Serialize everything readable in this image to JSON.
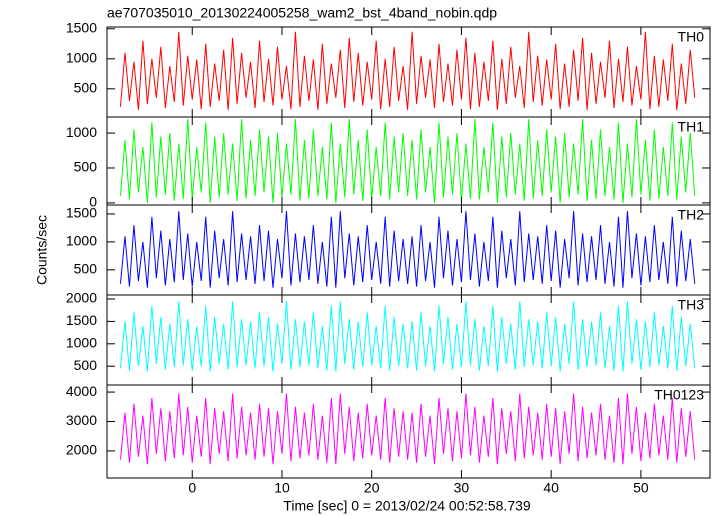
{
  "figure": {
    "title": "ae707035010_20130224005258_wam2_bst_4band_nobin.qdp",
    "ylabel": "Counts/sec"
  },
  "x_axis": {
    "label": "Time [sec] 0 = 2013/02/24 00:52:58.739",
    "xlim": [
      -9.5,
      57.7
    ],
    "xticks": [
      0,
      10,
      20,
      30,
      40,
      50
    ],
    "x": [
      -8,
      -7.5,
      -7,
      -6.5,
      -6,
      -5.5,
      -5,
      -4.5,
      -4,
      -3.5,
      -3,
      -2.5,
      -2,
      -1.5,
      -1,
      -0.5,
      0,
      0.5,
      1,
      1.5,
      2,
      2.5,
      3,
      3.5,
      4,
      4.5,
      5,
      5.5,
      6,
      6.5,
      7,
      7.5,
      8,
      8.5,
      9,
      9.5,
      10,
      10.5,
      11,
      11.5,
      12,
      12.5,
      13,
      13.5,
      14,
      14.5,
      15,
      15.5,
      16,
      16.5,
      17,
      17.5,
      18,
      18.5,
      19,
      19.5,
      20,
      20.5,
      21,
      21.5,
      22,
      22.5,
      23,
      23.5,
      24,
      24.5,
      25,
      25.5,
      26,
      26.5,
      27,
      27.5,
      28,
      28.5,
      29,
      29.5,
      30,
      30.5,
      31,
      31.5,
      32,
      32.5,
      33,
      33.5,
      34,
      34.5,
      35,
      35.5,
      36,
      36.5,
      37,
      37.5,
      38,
      38.5,
      39,
      39.5,
      40,
      40.5,
      41,
      41.5,
      42,
      42.5,
      43,
      43.5,
      44,
      44.5,
      45,
      45.5,
      46,
      46.5,
      47,
      47.5,
      48,
      48.5,
      49,
      49.5,
      50,
      50.5,
      51,
      51.5,
      52,
      52.5,
      53,
      53.5,
      54,
      54.5,
      55,
      55.5,
      56
    ]
  },
  "chart_data": [
    {
      "type": "line",
      "ylim": [
        30,
        1530
      ],
      "yticks": [
        500,
        1000,
        1500
      ],
      "series": [
        {
          "name": "TH0",
          "color": "#ff0000",
          "values": [
            200,
            1100,
            300,
            950,
            150,
            1300,
            250,
            1000,
            350,
            1200,
            180,
            880,
            280,
            1450,
            220,
            1050,
            320,
            990,
            160,
            1250,
            200,
            920,
            300,
            1150,
            150,
            1350,
            250,
            1100,
            350,
            950,
            180,
            1300,
            280,
            1000,
            220,
            1200,
            320,
            880,
            160,
            1450,
            200,
            1050,
            300,
            990,
            150,
            1250,
            250,
            920,
            350,
            1150,
            180,
            1350,
            280,
            1100,
            220,
            950,
            320,
            1300,
            160,
            1000,
            200,
            1200,
            300,
            880,
            150,
            1450,
            250,
            1050,
            350,
            990,
            180,
            1250,
            280,
            920,
            220,
            1150,
            320,
            1350,
            160,
            1100,
            200,
            950,
            300,
            1300,
            150,
            1000,
            250,
            1200,
            350,
            880,
            180,
            1450,
            280,
            1050,
            220,
            990,
            320,
            1250,
            160,
            920,
            200,
            1150,
            300,
            1350,
            150,
            1100,
            250,
            950,
            350,
            1300,
            180,
            1000,
            280,
            1200,
            220,
            880,
            320,
            1450,
            160,
            1050,
            200,
            990,
            300,
            1250,
            150,
            920,
            250,
            1150,
            350
          ]
        }
      ]
    },
    {
      "type": "line",
      "ylim": [
        -30,
        1230
      ],
      "yticks": [
        0,
        500,
        1000
      ],
      "series": [
        {
          "name": "TH1",
          "color": "#00ff00",
          "values": [
            100,
            900,
            50,
            1050,
            150,
            800,
            0,
            1150,
            80,
            950,
            120,
            1000,
            30,
            850,
            60,
            1200,
            50,
            800,
            150,
            1150,
            0,
            950,
            80,
            1000,
            120,
            850,
            30,
            1200,
            60,
            900,
            100,
            1050,
            150,
            950,
            0,
            1000,
            80,
            850,
            120,
            1200,
            30,
            900,
            60,
            1050,
            100,
            800,
            50,
            1150,
            0,
            850,
            80,
            1200,
            120,
            900,
            30,
            1050,
            60,
            800,
            100,
            1150,
            50,
            950,
            150,
            1000,
            100,
            900,
            50,
            1050,
            150,
            800,
            0,
            1150,
            80,
            950,
            120,
            1000,
            30,
            850,
            60,
            1200,
            50,
            800,
            150,
            1150,
            0,
            950,
            80,
            1000,
            120,
            850,
            30,
            1200,
            60,
            900,
            100,
            1050,
            150,
            950,
            0,
            1000,
            80,
            850,
            120,
            1200,
            30,
            900,
            60,
            1050,
            100,
            800,
            50,
            1150,
            0,
            850,
            80,
            1200,
            120,
            900,
            30,
            1050,
            60,
            800,
            100,
            1150,
            50,
            950,
            150,
            1000,
            100
          ]
        }
      ]
    },
    {
      "type": "line",
      "ylim": [
        50,
        1660
      ],
      "yticks": [
        500,
        1000,
        1500
      ],
      "series": [
        {
          "name": "TH2",
          "color": "#0000ff",
          "values": [
            250,
            1100,
            200,
            1300,
            300,
            1000,
            180,
            1450,
            350,
            1200,
            220,
            1050,
            280,
            1550,
            320,
            1150,
            200,
            1000,
            300,
            1450,
            180,
            1200,
            350,
            1050,
            220,
            1550,
            280,
            1150,
            320,
            1100,
            250,
            1300,
            300,
            1200,
            180,
            1050,
            350,
            1550,
            220,
            1150,
            280,
            1100,
            320,
            1300,
            250,
            1000,
            200,
            1450,
            180,
            1550,
            350,
            1150,
            220,
            1100,
            280,
            1300,
            320,
            1000,
            250,
            1450,
            200,
            1200,
            300,
            1050,
            250,
            1100,
            200,
            1300,
            300,
            1000,
            180,
            1450,
            350,
            1200,
            220,
            1050,
            280,
            1550,
            320,
            1150,
            200,
            1000,
            300,
            1450,
            180,
            1200,
            350,
            1050,
            220,
            1550,
            280,
            1150,
            320,
            1100,
            250,
            1300,
            300,
            1200,
            180,
            1050,
            350,
            1550,
            220,
            1150,
            280,
            1100,
            320,
            1300,
            250,
            1000,
            200,
            1450,
            180,
            1550,
            350,
            1150,
            220,
            1100,
            280,
            1300,
            320,
            1000,
            250,
            1450,
            200,
            1200,
            300,
            1050,
            250
          ]
        }
      ]
    },
    {
      "type": "line",
      "ylim": [
        80,
        2090
      ],
      "yticks": [
        500,
        1000,
        1500,
        2000
      ],
      "series": [
        {
          "name": "TH3",
          "color": "#00ffff",
          "values": [
            450,
            1500,
            400,
            1700,
            500,
            1400,
            380,
            1850,
            550,
            1600,
            420,
            1450,
            480,
            1950,
            520,
            1550,
            400,
            1400,
            500,
            1850,
            380,
            1600,
            550,
            1450,
            420,
            1950,
            480,
            1550,
            520,
            1500,
            450,
            1700,
            500,
            1600,
            380,
            1450,
            550,
            1950,
            420,
            1550,
            480,
            1500,
            520,
            1700,
            450,
            1400,
            400,
            1850,
            380,
            1950,
            550,
            1550,
            420,
            1500,
            480,
            1700,
            520,
            1400,
            450,
            1850,
            400,
            1600,
            500,
            1450,
            450,
            1500,
            400,
            1700,
            500,
            1400,
            380,
            1850,
            550,
            1600,
            420,
            1450,
            480,
            1950,
            520,
            1550,
            400,
            1400,
            500,
            1850,
            380,
            1600,
            550,
            1450,
            420,
            1950,
            480,
            1550,
            520,
            1500,
            450,
            1700,
            500,
            1600,
            380,
            1450,
            550,
            1950,
            420,
            1550,
            480,
            1500,
            520,
            1700,
            450,
            1400,
            400,
            1850,
            380,
            1950,
            550,
            1550,
            420,
            1500,
            480,
            1700,
            520,
            1400,
            450,
            1850,
            400,
            1600,
            500,
            1450,
            450
          ]
        }
      ]
    },
    {
      "type": "line",
      "ylim": [
        1080,
        4240
      ],
      "yticks": [
        2000,
        3000,
        4000
      ],
      "series": [
        {
          "name": "TH0123",
          "color": "#ff00ff",
          "values": [
            1700,
            3300,
            1600,
            3600,
            1800,
            3200,
            1550,
            3800,
            1900,
            3450,
            1650,
            3350,
            1750,
            3950,
            1850,
            3500,
            1600,
            3200,
            1800,
            3800,
            1550,
            3450,
            1900,
            3350,
            1650,
            3950,
            1750,
            3500,
            1850,
            3300,
            1700,
            3600,
            1800,
            3450,
            1550,
            3350,
            1900,
            3950,
            1650,
            3500,
            1750,
            3300,
            1850,
            3600,
            1700,
            3200,
            1600,
            3800,
            1550,
            3950,
            1900,
            3500,
            1650,
            3300,
            1750,
            3600,
            1850,
            3200,
            1700,
            3800,
            1600,
            3450,
            1800,
            3350,
            1700,
            3300,
            1600,
            3600,
            1800,
            3200,
            1550,
            3800,
            1900,
            3450,
            1650,
            3350,
            1750,
            3950,
            1850,
            3500,
            1600,
            3200,
            1800,
            3800,
            1550,
            3450,
            1900,
            3350,
            1650,
            3950,
            1750,
            3500,
            1850,
            3300,
            1700,
            3600,
            1800,
            3450,
            1550,
            3350,
            1900,
            3950,
            1650,
            3500,
            1750,
            3300,
            1850,
            3600,
            1700,
            3200,
            1600,
            3800,
            1550,
            3950,
            1900,
            3500,
            1650,
            3300,
            1750,
            3600,
            1850,
            3200,
            1700,
            3800,
            1600,
            3450,
            1800,
            3350,
            1700
          ]
        }
      ]
    }
  ]
}
